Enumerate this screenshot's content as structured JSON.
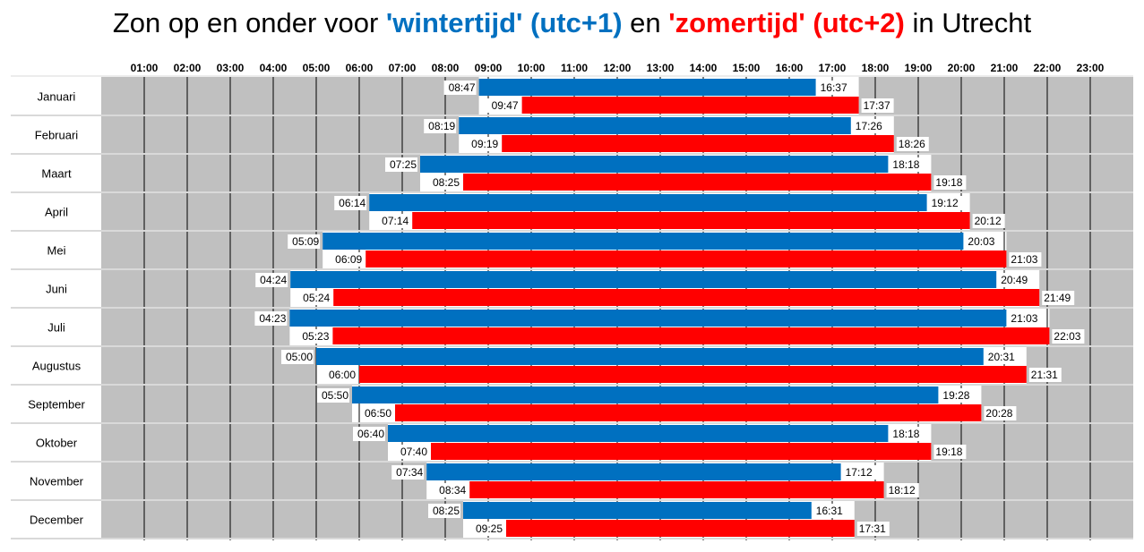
{
  "title": {
    "part1": "Zon op en onder voor ",
    "winter": "'wintertijd' (utc+1)",
    "mid": " en ",
    "summer": "'zomertijd' (utc+2)",
    "end": " in Utrecht"
  },
  "colors": {
    "winter": "#0070c0",
    "summer": "#ff0000",
    "night": "#c0c0c0",
    "grid": "#000000",
    "rowline": "#d9d9d9"
  },
  "chart_data": {
    "type": "bar",
    "orientation": "horizontal-range",
    "xlim": [
      "00:00",
      "24:00"
    ],
    "x_ticks": [
      "01:00",
      "02:00",
      "03:00",
      "04:00",
      "05:00",
      "06:00",
      "07:00",
      "08:00",
      "09:00",
      "10:00",
      "11:00",
      "12:00",
      "13:00",
      "14:00",
      "15:00",
      "16:00",
      "17:00",
      "18:00",
      "19:00",
      "20:00",
      "21:00",
      "22:00",
      "23:00"
    ],
    "categories": [
      "Januari",
      "Februari",
      "Maart",
      "April",
      "Mei",
      "Juni",
      "Juli",
      "Augustus",
      "September",
      "Oktober",
      "November",
      "December"
    ],
    "series": [
      {
        "name": "'wintertijd' (utc+1)",
        "color": "#0070c0",
        "start": [
          "08:47",
          "08:19",
          "07:25",
          "06:14",
          "05:09",
          "04:24",
          "04:23",
          "05:00",
          "05:50",
          "06:40",
          "07:34",
          "08:25"
        ],
        "end": [
          "16:37",
          "17:26",
          "18:18",
          "19:12",
          "20:03",
          "20:49",
          "21:03",
          "20:31",
          "19:28",
          "18:18",
          "17:12",
          "16:31"
        ]
      },
      {
        "name": "'zomertijd' (utc+2)",
        "color": "#ff0000",
        "start": [
          "09:47",
          "09:19",
          "08:25",
          "07:14",
          "06:09",
          "05:24",
          "05:23",
          "06:00",
          "06:50",
          "07:40",
          "08:34",
          "09:25"
        ],
        "end": [
          "17:37",
          "18:26",
          "19:18",
          "20:12",
          "21:03",
          "21:49",
          "22:03",
          "21:31",
          "20:28",
          "19:18",
          "18:12",
          "17:31"
        ]
      }
    ]
  }
}
